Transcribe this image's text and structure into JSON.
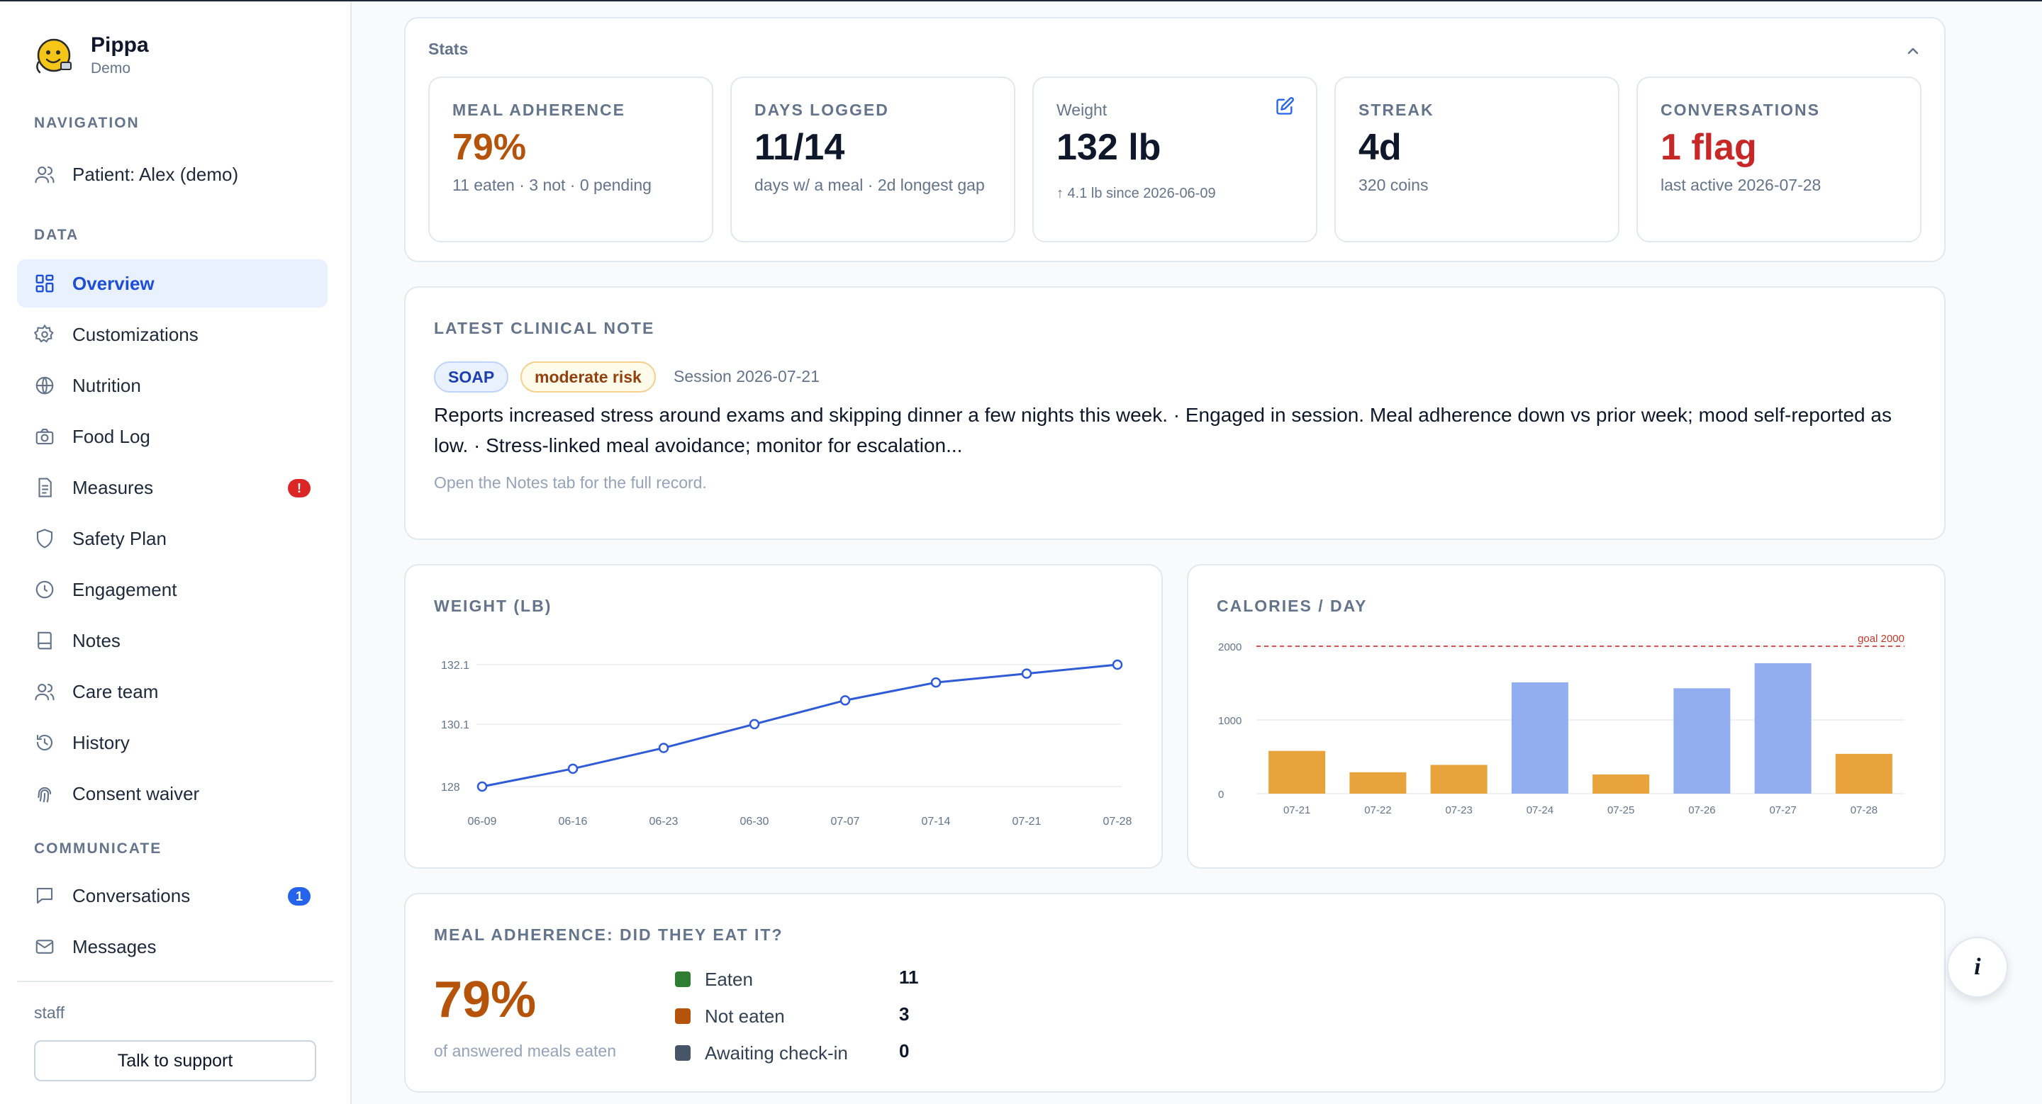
{
  "brand": {
    "name": "Pippa",
    "sub": "Demo"
  },
  "sidebar": {
    "nav_title": "NAVIGATION",
    "patient_label": "Patient: Alex (demo)",
    "data_title": "DATA",
    "items": [
      {
        "label": "Overview",
        "icon": "grid-icon"
      },
      {
        "label": "Customizations",
        "icon": "gear-icon"
      },
      {
        "label": "Nutrition",
        "icon": "globe-icon"
      },
      {
        "label": "Food Log",
        "icon": "camera-icon"
      },
      {
        "label": "Measures",
        "icon": "document-icon",
        "badge": "!"
      },
      {
        "label": "Safety Plan",
        "icon": "shield-icon"
      },
      {
        "label": "Engagement",
        "icon": "clock-icon"
      },
      {
        "label": "Notes",
        "icon": "notebook-icon"
      },
      {
        "label": "Care team",
        "icon": "users-icon"
      },
      {
        "label": "History",
        "icon": "history-icon"
      },
      {
        "label": "Consent waiver",
        "icon": "fingerprint-icon"
      }
    ],
    "communicate_title": "COMMUNICATE",
    "communicate_items": [
      {
        "label": "Conversations",
        "icon": "chat-icon",
        "badge": "1"
      },
      {
        "label": "Messages",
        "icon": "mail-icon"
      }
    ],
    "staff_label": "staff",
    "support_button": "Talk to support"
  },
  "stats": {
    "title": "Stats",
    "cards": [
      {
        "label": "MEAL ADHERENCE",
        "value": "79%",
        "sub": "11 eaten · 3 not · 0 pending"
      },
      {
        "label": "DAYS LOGGED",
        "value": "11/14",
        "sub": "days w/ a meal · 2d longest gap"
      },
      {
        "label": "Weight",
        "value": "132 lb",
        "sub": "↑ 4.1 lb since 2026-06-09"
      },
      {
        "label": "STREAK",
        "value": "4d",
        "sub": "320 coins"
      },
      {
        "label": "CONVERSATIONS",
        "value": "1 flag",
        "sub": "last active 2026-07-28"
      }
    ]
  },
  "note": {
    "title": "LATEST CLINICAL NOTE",
    "type_pill": "SOAP",
    "risk_pill": "moderate risk",
    "session": "Session 2026-07-21",
    "body": "Reports increased stress around exams and skipping dinner a few nights this week. · Engaged in session. Meal adherence down vs prior week; mood self-reported as low. · Stress-linked meal avoidance; monitor for escalation...",
    "hint": "Open the Notes tab for the full record."
  },
  "adherence": {
    "title": "MEAL ADHERENCE: DID THEY EAT IT?",
    "percent": "79%",
    "sub": "of answered meals eaten",
    "legend": [
      {
        "label": "Eaten",
        "value": "11",
        "color": "#2e7d32"
      },
      {
        "label": "Not eaten",
        "value": "3",
        "color": "#b45309"
      },
      {
        "label": "Awaiting check-in",
        "value": "0",
        "color": "#475569"
      }
    ]
  },
  "info_button": "i",
  "colors": {
    "accent": "#2563eb",
    "warn": "#b45309",
    "danger": "#c62828",
    "bar_low": "#e8a33d",
    "bar_high": "#93aef0"
  },
  "chart_data": [
    {
      "type": "line",
      "title": "WEIGHT (LB)",
      "x": [
        "06-09",
        "06-16",
        "06-23",
        "06-30",
        "07-07",
        "07-14",
        "07-21",
        "07-28"
      ],
      "values": [
        128.0,
        128.6,
        129.3,
        130.1,
        130.9,
        131.5,
        131.8,
        132.1
      ],
      "y_ticks": [
        "128",
        "130.1",
        "132.1"
      ],
      "ylim": [
        128.0,
        132.1
      ]
    },
    {
      "type": "bar",
      "title": "CALORIES / DAY",
      "categories": [
        "07-21",
        "07-22",
        "07-23",
        "07-24",
        "07-25",
        "07-26",
        "07-27",
        "07-28"
      ],
      "values": [
        580,
        290,
        390,
        1510,
        260,
        1430,
        1770,
        540
      ],
      "y_ticks": [
        "0",
        "1000",
        "2000"
      ],
      "ylim": [
        0,
        2000
      ],
      "goal": 2000,
      "goal_label": "goal 2000"
    }
  ]
}
